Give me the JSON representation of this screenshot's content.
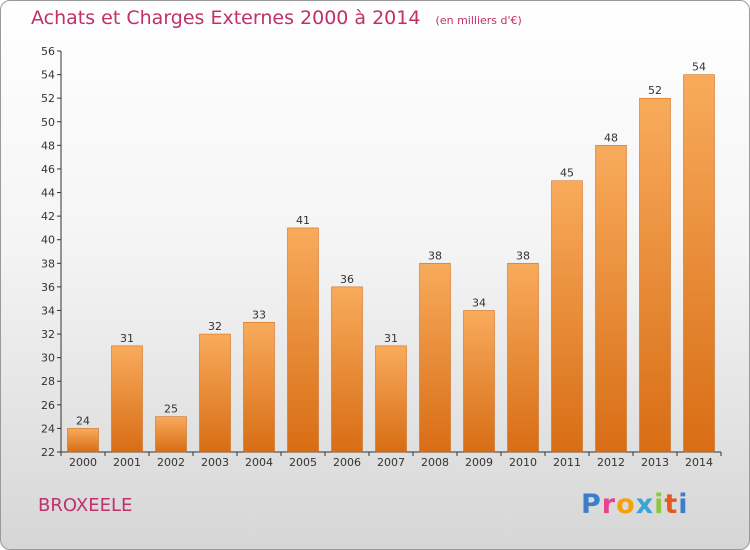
{
  "header": {
    "title": "Achats et Charges Externes 2000 à 2014",
    "unit": "(en milliers d'€)"
  },
  "footer": {
    "commune": "BROXEELE",
    "logo_letters": [
      "P",
      "r",
      "o",
      "x",
      "i",
      "t",
      "i"
    ],
    "logo_colors": [
      "#3a7fc8",
      "#e7428f",
      "#f5a10c",
      "#3ba3d8",
      "#8dc63f",
      "#e35a1c",
      "#3a7fc8"
    ]
  },
  "colors": {
    "accent": "#c0306a",
    "bar_light": "#f8ab5c",
    "bar_dark": "#d86d15",
    "axis": "#333333",
    "grid": "#c8c8c8"
  },
  "chart_data": {
    "type": "bar",
    "categories": [
      "2000",
      "2001",
      "2002",
      "2003",
      "2004",
      "2005",
      "2006",
      "2007",
      "2008",
      "2009",
      "2010",
      "2011",
      "2012",
      "2013",
      "2014"
    ],
    "values": [
      24,
      31,
      25,
      32,
      33,
      41,
      36,
      31,
      38,
      34,
      38,
      45,
      48,
      52,
      54
    ],
    "ylim": [
      22,
      56
    ],
    "yticks": [
      22,
      24,
      26,
      28,
      30,
      32,
      34,
      36,
      38,
      40,
      42,
      44,
      46,
      48,
      50,
      52,
      54,
      56
    ],
    "grid": false,
    "data_labels": true
  }
}
